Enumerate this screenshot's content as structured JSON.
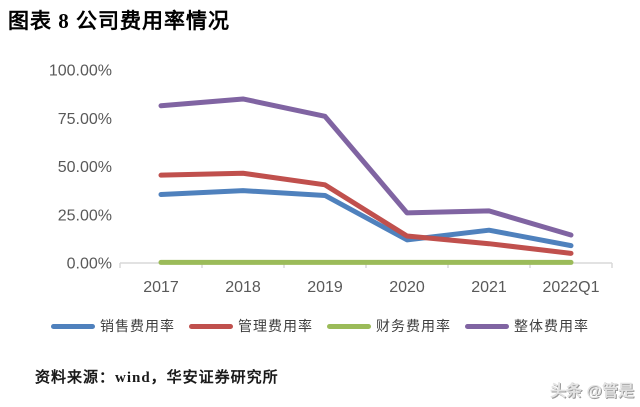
{
  "page": {
    "title": "图表 8 公司费用率情况",
    "source": "资料来源：wind，华安证券研究所",
    "watermark": "头条 @管是"
  },
  "chart_data": {
    "type": "line",
    "title": "公司费用率情况",
    "categories": [
      "2017",
      "2018",
      "2019",
      "2020",
      "2021",
      "2022Q1"
    ],
    "series": [
      {
        "name": "销售费用率",
        "color": "#4F81BD",
        "values": [
          35.5,
          37.5,
          35.0,
          12.0,
          17.0,
          9.0
        ]
      },
      {
        "name": "管理费用率",
        "color": "#C0504D",
        "values": [
          45.5,
          46.5,
          40.5,
          14.0,
          10.0,
          5.0
        ]
      },
      {
        "name": "财务费用率",
        "color": "#9BBB59",
        "values": [
          0.3,
          0.3,
          0.3,
          0.3,
          0.3,
          0.3
        ]
      },
      {
        "name": "整体费用率",
        "color": "#8064A2",
        "values": [
          81.5,
          85.0,
          76.0,
          26.0,
          27.0,
          14.5
        ]
      }
    ],
    "xlabel": "",
    "ylabel": "",
    "ylim": [
      0,
      100
    ],
    "yticks": [
      "0.00%",
      "25.00%",
      "50.00%",
      "75.00%",
      "100.00%"
    ],
    "grid": false,
    "legend_position": "bottom",
    "axis_line_color": "#D9D9D9",
    "tick_label_color": "#595959",
    "line_width": 5
  }
}
